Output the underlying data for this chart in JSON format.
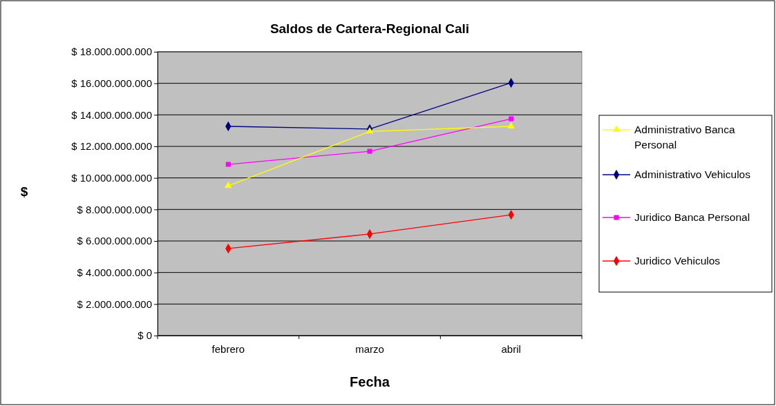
{
  "chart_data": {
    "type": "line",
    "title": "Saldos de Cartera-Regional Cali",
    "xlabel": "Fecha",
    "ylabel": "$",
    "categories": [
      "febrero",
      "marzo",
      "abril"
    ],
    "series": [
      {
        "name": "Administrativo Banca Personal",
        "color": "#ffff00",
        "marker": "triangle",
        "values": [
          9500000000,
          12950000000,
          13270000000
        ]
      },
      {
        "name": "Administrativo Vehiculos",
        "color": "#000080",
        "marker": "diamond",
        "values": [
          13270000000,
          13100000000,
          16030000000
        ]
      },
      {
        "name": "Juridico Banca Personal",
        "color": "#ff00ff",
        "marker": "square",
        "values": [
          10860000000,
          11690000000,
          13750000000
        ]
      },
      {
        "name": "Juridico Vehiculos",
        "color": "#ff0000",
        "marker": "diamond",
        "values": [
          5520000000,
          6440000000,
          7660000000
        ]
      }
    ],
    "ylim": [
      0,
      18000000000
    ],
    "yticks": [
      {
        "value": 0,
        "label": "$ 0"
      },
      {
        "value": 2000000000,
        "label": "$ 2.000.000.000"
      },
      {
        "value": 4000000000,
        "label": "$ 4.000.000.000"
      },
      {
        "value": 6000000000,
        "label": "$ 6.000.000.000"
      },
      {
        "value": 8000000000,
        "label": "$ 8.000.000.000"
      },
      {
        "value": 10000000000,
        "label": "$ 10.000.000.000"
      },
      {
        "value": 12000000000,
        "label": "$ 12.000.000.000"
      },
      {
        "value": 14000000000,
        "label": "$ 14.000.000.000"
      },
      {
        "value": 16000000000,
        "label": "$ 16.000.000.000"
      },
      {
        "value": 18000000000,
        "label": "$ 18.000.000.000"
      }
    ],
    "grid": "y",
    "legend": "right",
    "line_style": "solid"
  }
}
